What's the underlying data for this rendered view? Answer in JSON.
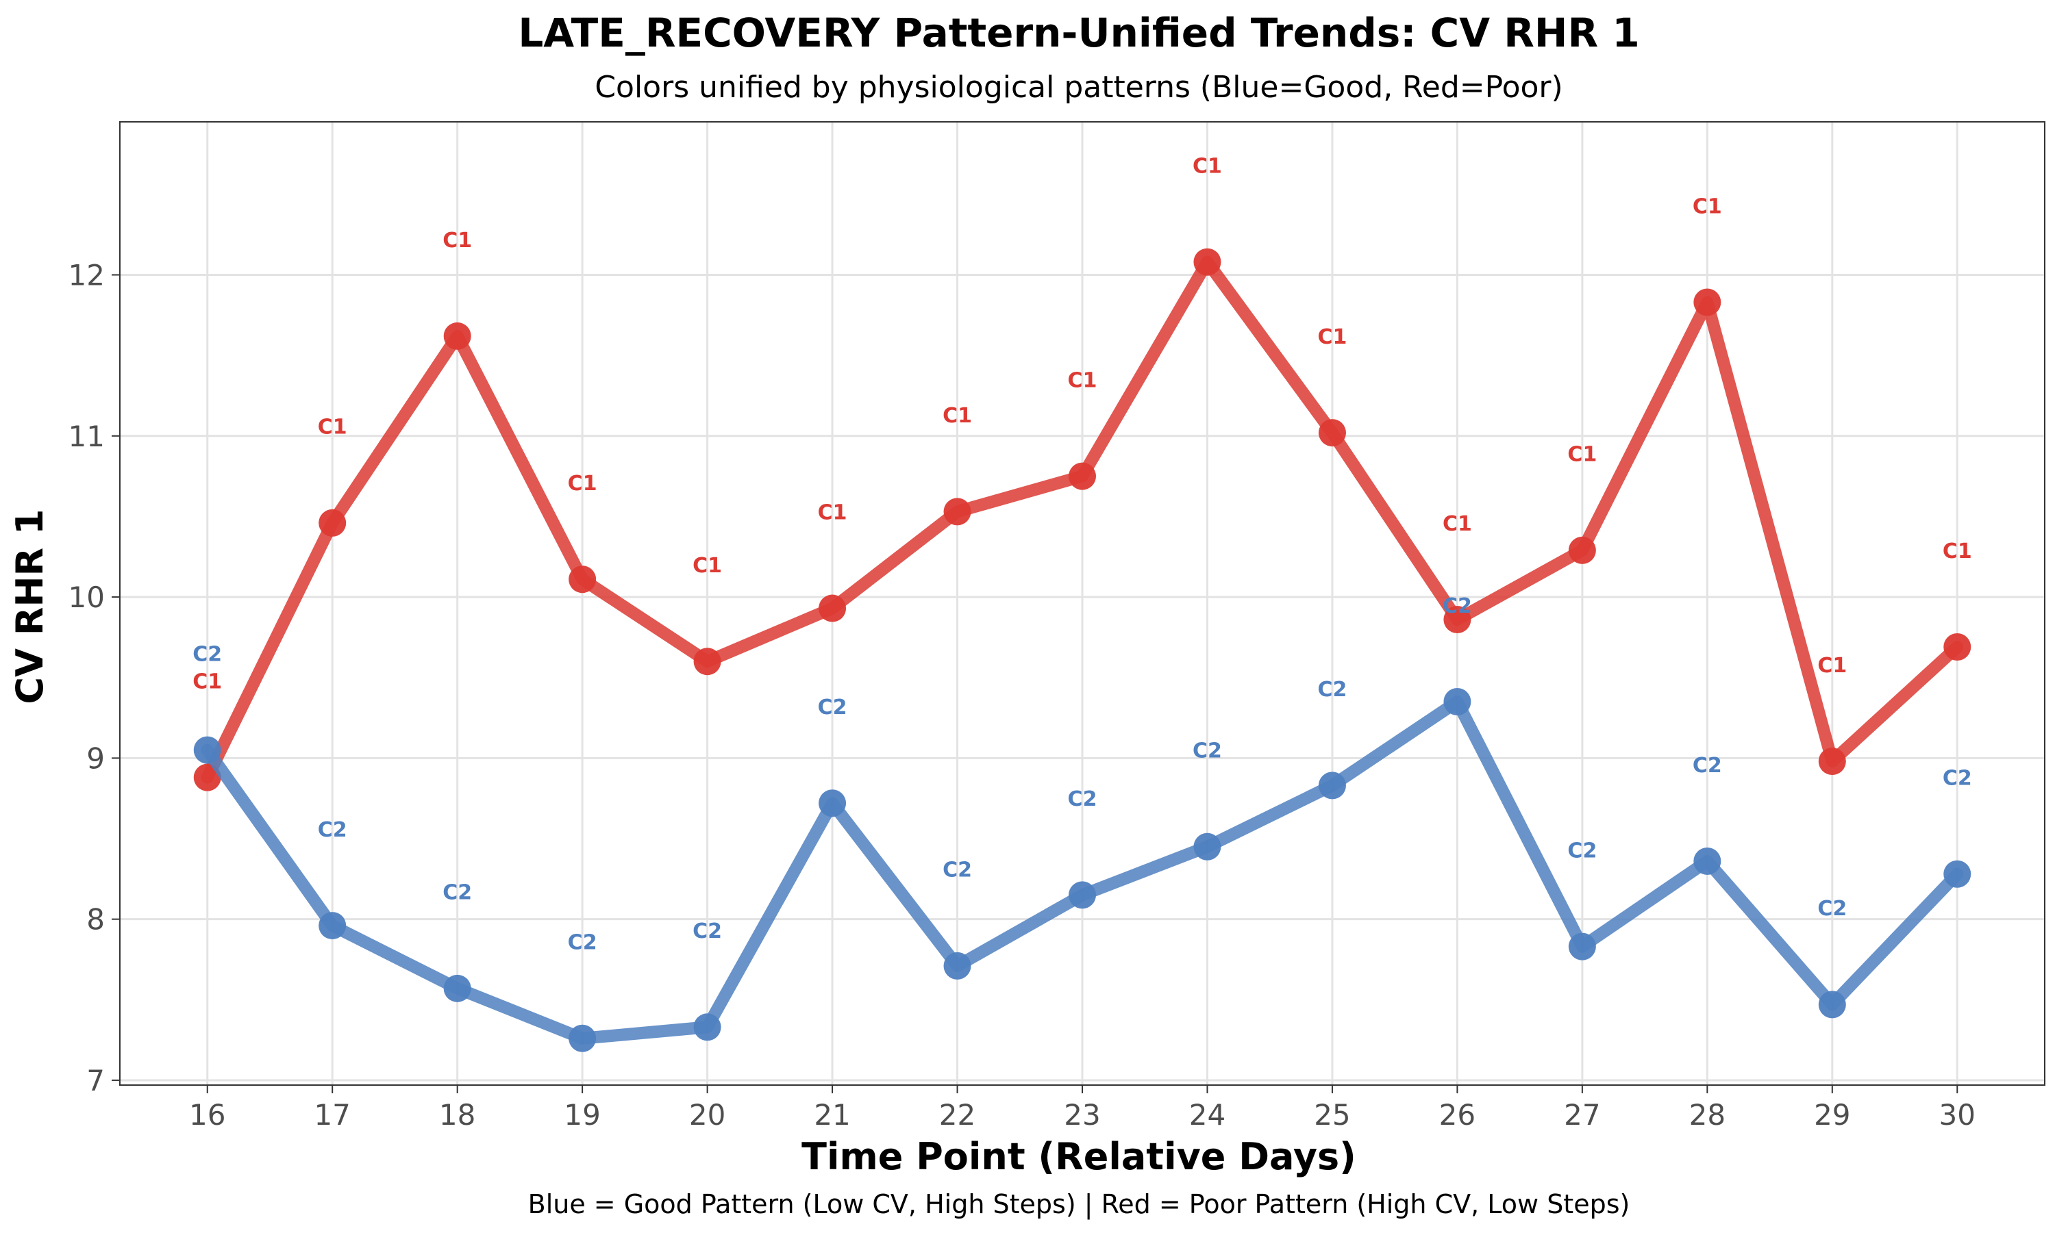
{
  "chart_data": {
    "type": "line",
    "title": "LATE_RECOVERY Pattern-Unified Trends: CV RHR 1",
    "subtitle": "Colors unified by physiological patterns (Blue=Good, Red=Poor)",
    "xlabel": "Time Point (Relative Days)",
    "ylabel": "CV RHR 1",
    "caption": "Blue = Good Pattern (Low CV, High Steps) | Red = Poor Pattern (High CV, Low Steps)",
    "x": [
      16,
      17,
      18,
      19,
      20,
      21,
      22,
      23,
      24,
      25,
      26,
      27,
      28,
      29,
      30
    ],
    "xlim": [
      15.3,
      30.7
    ],
    "ylim": [
      6.97,
      12.95
    ],
    "xticks": [
      16,
      17,
      18,
      19,
      20,
      21,
      22,
      23,
      24,
      25,
      26,
      27,
      28,
      29,
      30
    ],
    "yticks": [
      7,
      8,
      9,
      10,
      11,
      12
    ],
    "grid": true,
    "legend": "none",
    "series": [
      {
        "label": "C1",
        "color": "#dc3a33",
        "values": [
          8.88,
          10.46,
          11.62,
          10.11,
          9.6,
          9.93,
          10.53,
          10.75,
          12.08,
          11.02,
          9.86,
          10.29,
          11.83,
          8.98,
          9.69
        ]
      },
      {
        "label": "C2",
        "color": "#4f80c0",
        "values": [
          9.05,
          7.96,
          7.57,
          7.26,
          7.33,
          8.72,
          7.71,
          8.15,
          8.45,
          8.83,
          9.35,
          7.83,
          8.36,
          7.47,
          8.28
        ]
      }
    ]
  }
}
